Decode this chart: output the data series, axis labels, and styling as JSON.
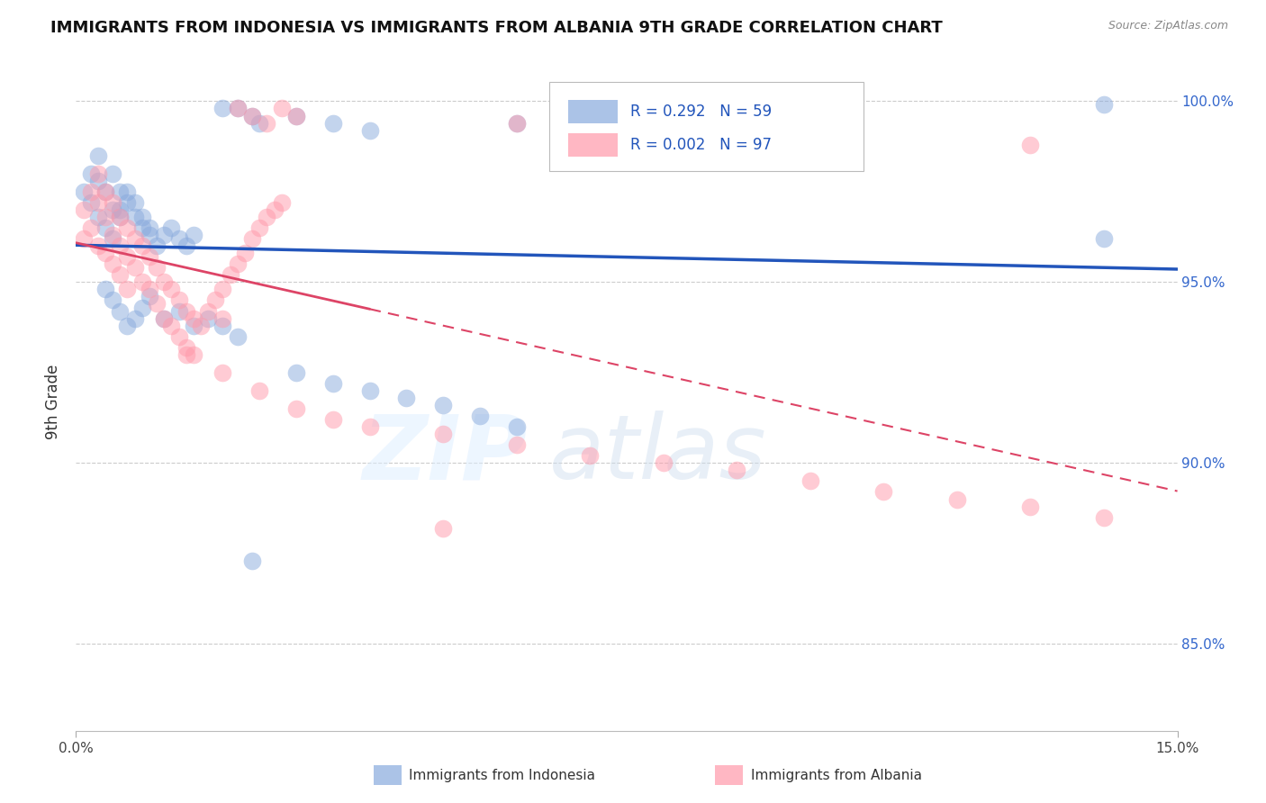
{
  "title": "IMMIGRANTS FROM INDONESIA VS IMMIGRANTS FROM ALBANIA 9TH GRADE CORRELATION CHART",
  "source": "Source: ZipAtlas.com",
  "ylabel_left": "9th Grade",
  "legend_label1": "Immigrants from Indonesia",
  "legend_label2": "Immigrants from Albania",
  "R1": 0.292,
  "N1": 59,
  "R2": 0.002,
  "N2": 97,
  "color1": "#88AADD",
  "color2": "#FF99AA",
  "line_color1": "#2255BB",
  "line_color2": "#DD4466",
  "xmin": 0.0,
  "xmax": 0.15,
  "ymin": 0.826,
  "ymax": 1.008,
  "yticks": [
    0.85,
    0.9,
    0.95,
    1.0
  ],
  "ytick_labels": [
    "85.0%",
    "90.0%",
    "95.0%",
    "100.0%"
  ],
  "xtick_labels": [
    "0.0%",
    "15.0%"
  ],
  "background_color": "#ffffff",
  "title_fontsize": 13,
  "legend_fontsize": 12,
  "tick_fontsize": 11,
  "ylabel_fontsize": 12
}
